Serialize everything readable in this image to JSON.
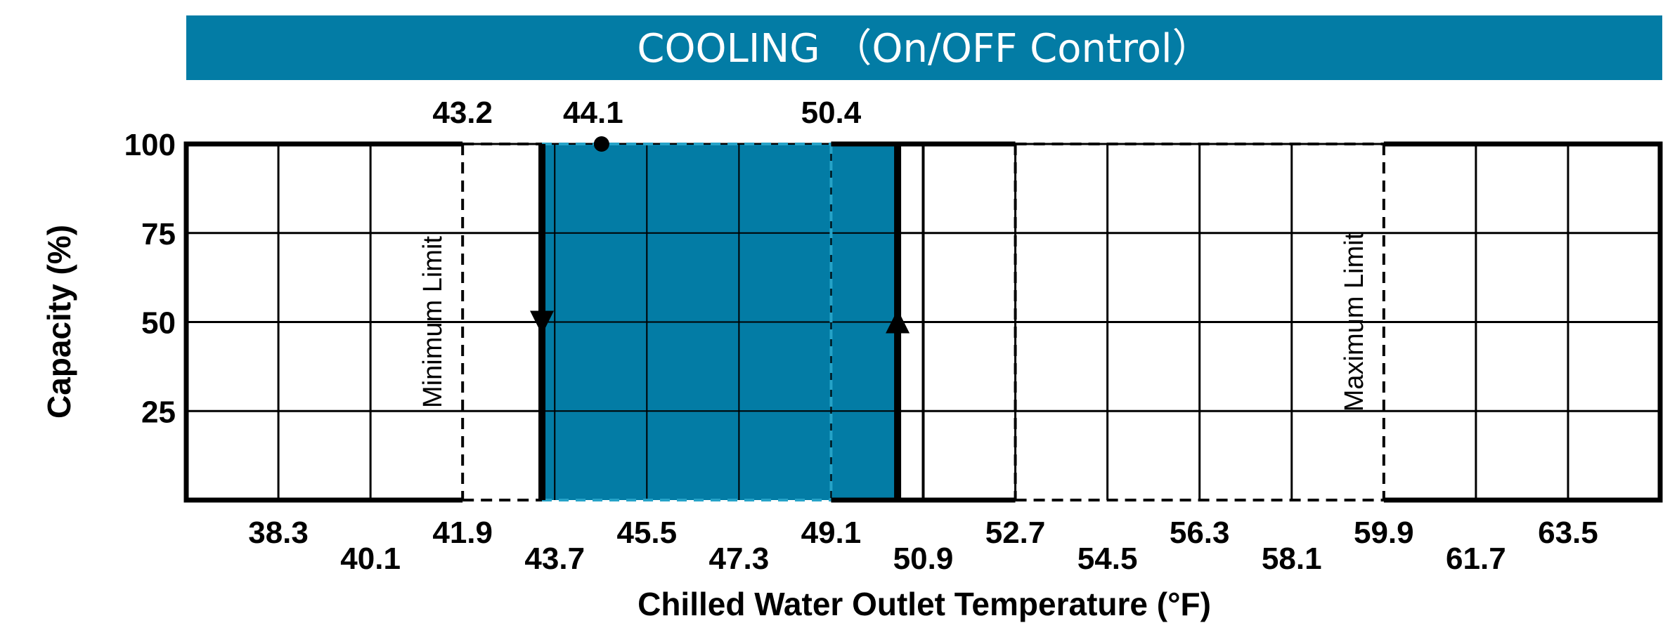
{
  "chart_data": {
    "type": "area",
    "title": "COOLING （On/OFF Control）",
    "xlabel": "Chilled Water Outlet Temperature (°F)",
    "ylabel": "Capacity (%)",
    "xlim": [
      36.5,
      65.3
    ],
    "ylim": [
      0,
      100
    ],
    "x_ticks": [
      "38.3",
      "40.1",
      "41.9",
      "43.7",
      "45.5",
      "47.3",
      "49.1",
      "50.9",
      "52.7",
      "54.5",
      "56.3",
      "58.1",
      "59.9",
      "61.7",
      "63.5"
    ],
    "y_ticks": [
      "25",
      "50",
      "75",
      "100"
    ],
    "grid": true,
    "colors": {
      "band": "#037ca5",
      "title_bg": "#037ca5"
    },
    "operating_band": {
      "x_start": 43.45,
      "x_end": 50.4,
      "y": 100
    },
    "off_line": {
      "x": 43.45,
      "direction": "down"
    },
    "on_line": {
      "x": 50.4,
      "direction": "up"
    },
    "annotations": [
      {
        "label": "43.2",
        "x": 41.9
      },
      {
        "label": "44.1",
        "x": 44.45,
        "marker": "dot"
      },
      {
        "label": "50.4",
        "x": 49.1
      }
    ],
    "limits": [
      {
        "label": "Minimum Limit",
        "x": 41.9
      },
      {
        "label": "Maximum Limit",
        "x": 59.9
      }
    ]
  }
}
